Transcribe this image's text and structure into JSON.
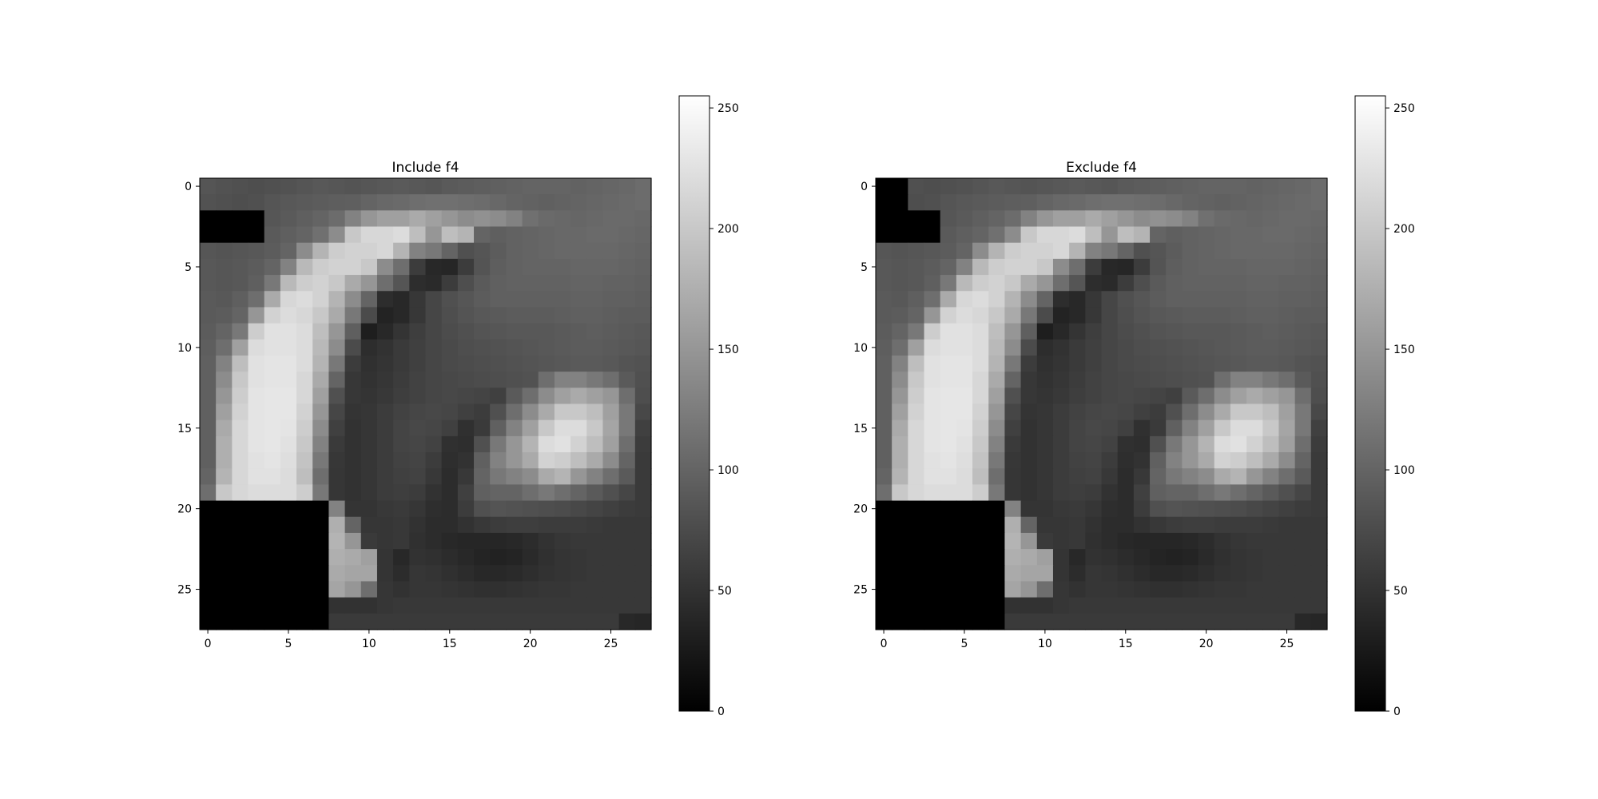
{
  "chart_data": [
    {
      "type": "heatmap",
      "title": "Include f4",
      "colormap": "gray",
      "vmin": 0,
      "vmax": 255,
      "xlim": [
        -0.5,
        27.5
      ],
      "ylim": [
        27.5,
        -0.5
      ],
      "xticks": [
        "0",
        "5",
        "10",
        "15",
        "20",
        "25"
      ],
      "yticks": [
        "0",
        "5",
        "10",
        "15",
        "20",
        "25"
      ],
      "colorbar_ticks": [
        "0",
        "50",
        "100",
        "150",
        "200",
        "250"
      ],
      "grid": false,
      "masked_regions": [
        {
          "rows": [
            2,
            3
          ],
          "cols": [
            0,
            3
          ],
          "value": 0
        },
        {
          "rows": [
            20,
            27
          ],
          "cols": [
            0,
            7
          ],
          "value": 0
        }
      ]
    },
    {
      "type": "heatmap",
      "title": "Exclude f4",
      "colormap": "gray",
      "vmin": 0,
      "vmax": 255,
      "xlim": [
        -0.5,
        27.5
      ],
      "ylim": [
        27.5,
        -0.5
      ],
      "xticks": [
        "0",
        "5",
        "10",
        "15",
        "20",
        "25"
      ],
      "yticks": [
        "0",
        "5",
        "10",
        "15",
        "20",
        "25"
      ],
      "colorbar_ticks": [
        "0",
        "50",
        "100",
        "150",
        "200",
        "250"
      ],
      "grid": false,
      "masked_regions": [
        {
          "rows": [
            0,
            1
          ],
          "cols": [
            0,
            1
          ],
          "value": 0
        },
        {
          "rows": [
            2,
            3
          ],
          "cols": [
            0,
            3
          ],
          "value": 0
        },
        {
          "rows": [
            20,
            27
          ],
          "cols": [
            0,
            7
          ],
          "value": 0
        }
      ]
    }
  ],
  "image_base": [
    [
      85,
      82,
      80,
      78,
      80,
      82,
      85,
      88,
      86,
      84,
      86,
      88,
      90,
      88,
      86,
      90,
      92,
      94,
      96,
      98,
      100,
      100,
      100,
      98,
      100,
      102,
      104,
      108
    ],
    [
      82,
      80,
      78,
      80,
      85,
      88,
      90,
      92,
      94,
      95,
      100,
      104,
      106,
      110,
      112,
      112,
      110,
      108,
      104,
      100,
      98,
      96,
      98,
      100,
      102,
      104,
      106,
      108
    ],
    [
      80,
      78,
      80,
      82,
      86,
      90,
      95,
      100,
      108,
      130,
      150,
      160,
      160,
      170,
      160,
      150,
      140,
      145,
      140,
      130,
      112,
      106,
      104,
      102,
      104,
      106,
      106,
      104
    ],
    [
      82,
      80,
      82,
      86,
      90,
      95,
      100,
      112,
      140,
      200,
      215,
      215,
      220,
      190,
      150,
      190,
      180,
      100,
      95,
      98,
      100,
      102,
      104,
      104,
      106,
      106,
      104,
      102
    ],
    [
      86,
      84,
      86,
      88,
      92,
      100,
      140,
      180,
      205,
      210,
      210,
      215,
      180,
      130,
      120,
      100,
      80,
      85,
      92,
      98,
      100,
      102,
      104,
      104,
      104,
      104,
      102,
      100
    ],
    [
      88,
      86,
      88,
      92,
      100,
      130,
      185,
      205,
      210,
      210,
      200,
      140,
      110,
      60,
      40,
      38,
      60,
      84,
      94,
      98,
      100,
      100,
      100,
      102,
      102,
      102,
      100,
      98
    ],
    [
      88,
      86,
      88,
      95,
      120,
      185,
      205,
      210,
      200,
      170,
      150,
      110,
      85,
      45,
      42,
      60,
      78,
      90,
      96,
      98,
      98,
      98,
      98,
      100,
      100,
      98,
      98,
      96
    ],
    [
      90,
      88,
      95,
      110,
      170,
      215,
      220,
      210,
      180,
      140,
      100,
      45,
      40,
      55,
      70,
      80,
      86,
      92,
      96,
      96,
      96,
      96,
      96,
      98,
      98,
      96,
      96,
      94
    ],
    [
      90,
      92,
      100,
      150,
      210,
      220,
      215,
      200,
      170,
      120,
      75,
      35,
      40,
      55,
      70,
      78,
      84,
      88,
      90,
      92,
      92,
      92,
      94,
      96,
      96,
      94,
      92,
      92
    ],
    [
      92,
      100,
      120,
      205,
      225,
      225,
      220,
      190,
      150,
      95,
      30,
      40,
      52,
      62,
      70,
      76,
      80,
      84,
      86,
      88,
      88,
      88,
      90,
      92,
      94,
      92,
      90,
      88
    ],
    [
      94,
      110,
      160,
      220,
      225,
      225,
      220,
      185,
      140,
      75,
      45,
      50,
      58,
      64,
      70,
      74,
      78,
      80,
      82,
      84,
      86,
      88,
      90,
      92,
      92,
      90,
      88,
      86
    ],
    [
      96,
      130,
      190,
      225,
      228,
      228,
      220,
      180,
      120,
      60,
      48,
      52,
      58,
      64,
      70,
      74,
      76,
      78,
      80,
      82,
      84,
      86,
      88,
      90,
      90,
      88,
      84,
      82
    ],
    [
      96,
      140,
      200,
      225,
      228,
      228,
      215,
      170,
      100,
      55,
      50,
      54,
      60,
      66,
      70,
      72,
      74,
      76,
      78,
      80,
      82,
      110,
      130,
      130,
      120,
      110,
      90,
      80
    ],
    [
      96,
      150,
      205,
      228,
      230,
      230,
      215,
      160,
      80,
      55,
      52,
      56,
      62,
      66,
      70,
      72,
      70,
      68,
      64,
      90,
      110,
      140,
      160,
      170,
      160,
      150,
      110,
      78
    ],
    [
      96,
      160,
      210,
      228,
      230,
      230,
      210,
      150,
      70,
      52,
      54,
      60,
      66,
      70,
      72,
      70,
      64,
      60,
      80,
      110,
      140,
      170,
      200,
      200,
      190,
      160,
      120,
      72
    ],
    [
      96,
      170,
      215,
      228,
      230,
      228,
      205,
      140,
      64,
      50,
      54,
      60,
      68,
      72,
      70,
      64,
      48,
      58,
      96,
      130,
      160,
      200,
      220,
      220,
      200,
      165,
      120,
      64
    ],
    [
      96,
      175,
      215,
      228,
      230,
      225,
      200,
      130,
      58,
      50,
      54,
      60,
      68,
      70,
      66,
      48,
      46,
      80,
      120,
      150,
      180,
      220,
      225,
      210,
      190,
      160,
      110,
      60
    ],
    [
      96,
      175,
      215,
      225,
      228,
      222,
      195,
      120,
      55,
      50,
      54,
      60,
      66,
      68,
      60,
      46,
      50,
      96,
      130,
      150,
      170,
      210,
      205,
      190,
      170,
      140,
      100,
      58
    ],
    [
      100,
      180,
      215,
      225,
      225,
      220,
      190,
      110,
      54,
      50,
      54,
      60,
      64,
      66,
      56,
      44,
      56,
      100,
      120,
      130,
      140,
      170,
      180,
      150,
      130,
      110,
      90,
      58
    ],
    [
      110,
      200,
      215,
      220,
      220,
      220,
      205,
      120,
      54,
      50,
      54,
      60,
      62,
      60,
      50,
      44,
      64,
      96,
      100,
      100,
      110,
      120,
      110,
      100,
      90,
      80,
      70,
      58
    ],
    [
      0,
      0,
      0,
      0,
      0,
      0,
      0,
      0,
      130,
      52,
      52,
      56,
      58,
      54,
      46,
      44,
      60,
      80,
      84,
      82,
      80,
      78,
      76,
      72,
      68,
      64,
      60,
      58
    ],
    [
      0,
      0,
      0,
      0,
      0,
      0,
      0,
      0,
      175,
      100,
      54,
      54,
      56,
      50,
      44,
      44,
      50,
      56,
      60,
      62,
      62,
      60,
      60,
      60,
      58,
      56,
      56,
      56
    ],
    [
      0,
      0,
      0,
      0,
      0,
      0,
      0,
      0,
      180,
      150,
      58,
      54,
      56,
      48,
      44,
      40,
      38,
      38,
      38,
      40,
      44,
      50,
      54,
      56,
      56,
      56,
      56,
      56
    ],
    [
      0,
      0,
      0,
      0,
      0,
      0,
      0,
      0,
      175,
      170,
      160,
      52,
      40,
      50,
      48,
      44,
      40,
      36,
      34,
      36,
      42,
      48,
      52,
      54,
      56,
      56,
      56,
      56
    ],
    [
      0,
      0,
      0,
      0,
      0,
      0,
      0,
      0,
      170,
      165,
      165,
      52,
      44,
      54,
      52,
      48,
      44,
      40,
      40,
      42,
      46,
      50,
      52,
      54,
      56,
      56,
      56,
      56
    ],
    [
      0,
      0,
      0,
      0,
      0,
      0,
      0,
      0,
      165,
      150,
      110,
      54,
      50,
      54,
      54,
      52,
      50,
      48,
      48,
      50,
      52,
      54,
      54,
      56,
      56,
      56,
      56,
      56
    ],
    [
      0,
      0,
      0,
      0,
      0,
      0,
      0,
      0,
      50,
      50,
      50,
      54,
      56,
      56,
      56,
      56,
      56,
      56,
      56,
      56,
      56,
      56,
      56,
      56,
      56,
      56,
      56,
      56
    ],
    [
      0,
      0,
      0,
      0,
      0,
      0,
      0,
      0,
      58,
      58,
      58,
      58,
      58,
      58,
      58,
      58,
      58,
      58,
      58,
      58,
      58,
      58,
      58,
      58,
      58,
      58,
      40,
      38
    ]
  ]
}
